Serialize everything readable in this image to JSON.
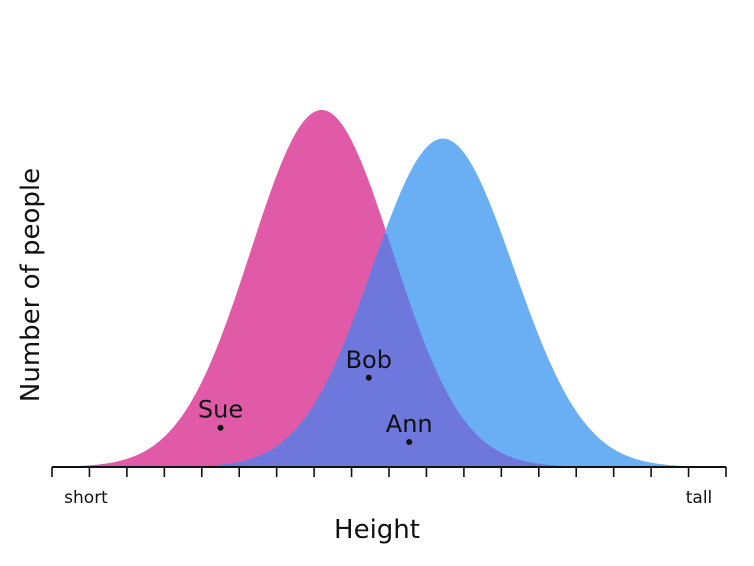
{
  "chart_data": {
    "type": "area",
    "xlabel": "Height",
    "ylabel": "Number of people",
    "x_tick_labels": {
      "min": "short",
      "max": "tall"
    },
    "xlim": [
      0,
      1
    ],
    "ylim": [
      0,
      1
    ],
    "grid": false,
    "series": [
      {
        "mean": 0.4,
        "sd": 0.105,
        "peak": 1.0,
        "color": "#e05aa8"
      },
      {
        "mean": 0.58,
        "sd": 0.105,
        "peak": 0.92,
        "color": "#6aaef3"
      }
    ],
    "overlap_color": "#6e78dc",
    "points": [
      {
        "label": "Sue",
        "x": 0.25,
        "y": 0.11
      },
      {
        "label": "Bob",
        "x": 0.47,
        "y": 0.25
      },
      {
        "label": "Ann",
        "x": 0.53,
        "y": 0.07
      }
    ],
    "tick_count": 19
  }
}
